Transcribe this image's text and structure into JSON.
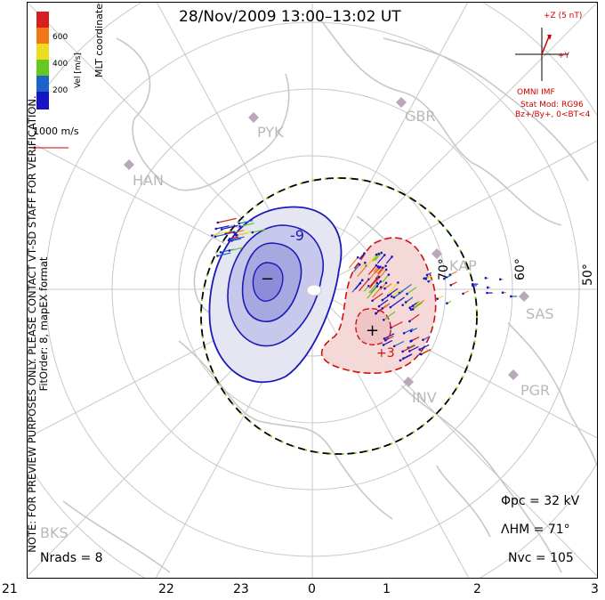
{
  "title": "28/Nov/2009 13:00–13:02 UT",
  "side_note_line1": "NOTE: FOR PREVIEW PURPOSES ONLY. PLEASE CONTACT VT-SD STAFF FOR VERIFICATION.",
  "side_note_line2": "FitOrder: 8, mapEX format",
  "coordinates_label": "MLT coordinates",
  "colorbar": {
    "label": "Vel [m/s]",
    "ticks": [
      "600",
      "400",
      "200"
    ],
    "colors": [
      "#d81e1e",
      "#f07814",
      "#f0dc1e",
      "#64c81e",
      "#1e64c8",
      "#1414c8"
    ]
  },
  "velocity_scale": "1000 m/s",
  "imf": {
    "plus_z": "+Z (5 nT)",
    "plus_y": "+Y",
    "label": "OMNI IMF",
    "stat_mod": "Stat Mod: RG96",
    "conditions": "Bz+/By+, 0<BT<4"
  },
  "stations": [
    "PYK",
    "GBR",
    "HAN",
    "KAP",
    "SAS",
    "PGR",
    "INV",
    "BKS"
  ],
  "latitude_labels": [
    "70°",
    "60°",
    "50°"
  ],
  "potential_labels": [
    "-9",
    "+3"
  ],
  "stats": {
    "phi_pc": "Φpc = 32 kV",
    "lambda_hm": "ΛHM = 71°",
    "n_vc": "Nvc = 105",
    "n_rads": "Nrads = 8"
  },
  "mlt_hours": [
    "21",
    "22",
    "23",
    "0",
    "1",
    "2",
    "3"
  ],
  "colors": {
    "negative_cell": "#1a1ab8",
    "positive_cell": "#d01010",
    "heppner_maynard": "#000000",
    "grid": "#c8c8c8",
    "coast": "#c8c8c8"
  }
}
